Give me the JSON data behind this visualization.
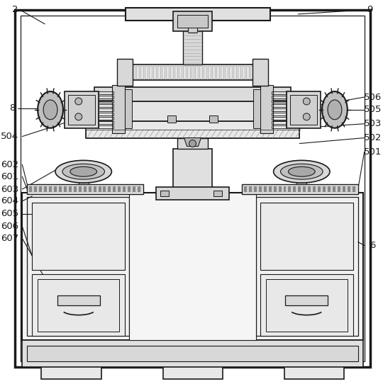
{
  "bg_color": "#ffffff",
  "lc": "#1a1a1a",
  "gray1": "#f0f0f0",
  "gray2": "#e0e0e0",
  "gray3": "#c8c8c8",
  "gray4": "#b0b0b0",
  "gray5": "#888888"
}
